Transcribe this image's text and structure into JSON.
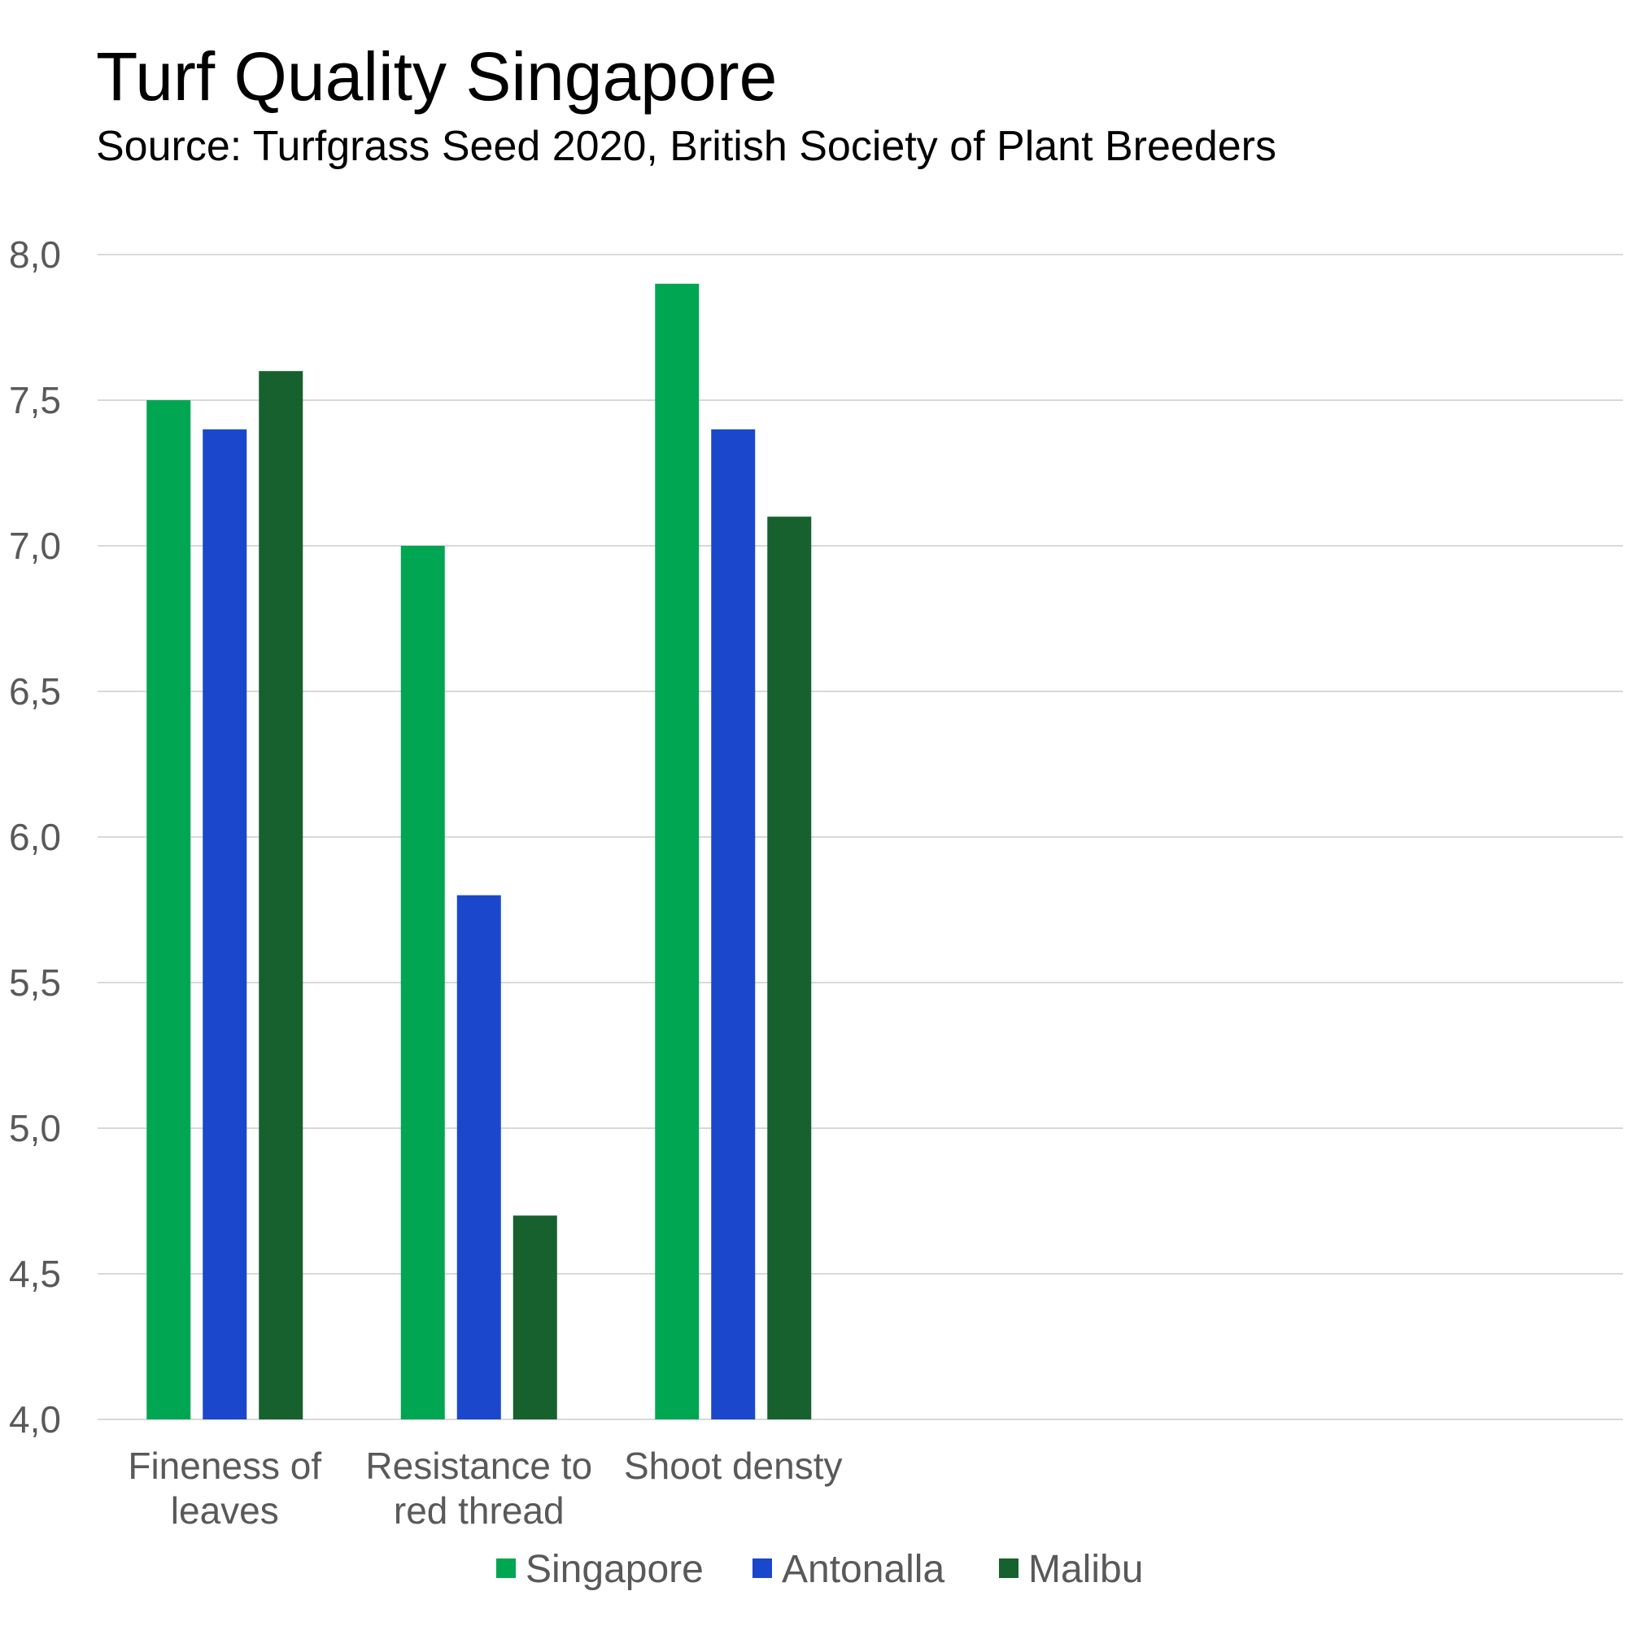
{
  "chart_data": {
    "type": "bar",
    "title": "Turf Quality Singapore",
    "subtitle": "Source: Turfgrass Seed 2020, British Society of Plant Breeders",
    "xlabel": "",
    "ylabel": "",
    "ylim": [
      4.0,
      8.0
    ],
    "yticks": [
      "4,0",
      "4,5",
      "5,0",
      "5,5",
      "6,0",
      "6,5",
      "7,0",
      "7,5",
      "8,0"
    ],
    "ytick_values": [
      4.0,
      4.5,
      5.0,
      5.5,
      6.0,
      6.5,
      7.0,
      7.5,
      8.0
    ],
    "grid": true,
    "legend_position": "bottom",
    "categories": [
      [
        "Fineness of",
        "leaves"
      ],
      [
        "Resistance to",
        "red thread"
      ],
      [
        "Shoot densty"
      ]
    ],
    "category_slots": 6,
    "series": [
      {
        "name": "Singapore",
        "color": "#00A651",
        "values": [
          7.5,
          7.0,
          7.9
        ]
      },
      {
        "name": "Antonalla",
        "color": "#1A47CC",
        "values": [
          7.4,
          5.8,
          7.4
        ]
      },
      {
        "name": "Malibu",
        "color": "#16612E",
        "values": [
          7.6,
          4.7,
          7.1
        ]
      }
    ],
    "colors": {
      "grid": "#D9D9D9",
      "text": "#595959",
      "title": "#000000"
    }
  }
}
